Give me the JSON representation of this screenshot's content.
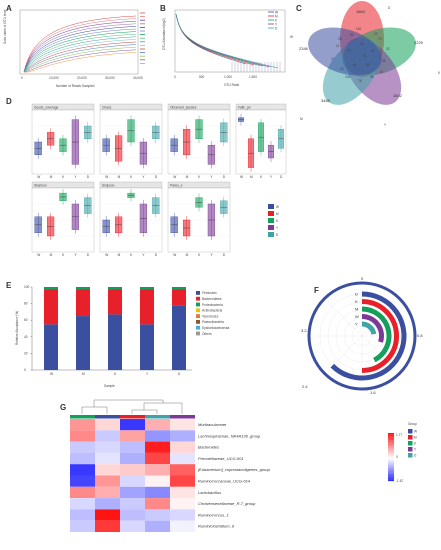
{
  "panels": {
    "A": {
      "label": "A",
      "ylabel": "Sobs index of OTU level",
      "xlabel": "Number of Reads Sampled",
      "xticks": [
        "0",
        "10,000",
        "20,000",
        "30,000",
        "40,000"
      ]
    },
    "B": {
      "label": "B",
      "ylabel": "OTU Abundance(log2)",
      "xlabel": "OTU Rank",
      "xticks": [
        "0",
        "500",
        "1,000",
        "1,500"
      ],
      "legend": [
        "W",
        "M",
        "K",
        "Y",
        "D"
      ]
    },
    "C": {
      "label": "C",
      "values": [
        "1664",
        "2229",
        "1642",
        "3465",
        "2346",
        "181",
        "70",
        "38",
        "96",
        "105",
        "17",
        "28",
        "34",
        "45",
        "80",
        "50",
        "74",
        "91",
        "52",
        "23",
        "32",
        "57",
        "78",
        "30",
        "11"
      ],
      "set_labels": [
        "D",
        "K",
        "Y",
        "M",
        "W"
      ]
    },
    "D": {
      "label": "D",
      "facets": [
        "Goods_coverage",
        "Chao1",
        "Observed_species",
        "Faith_pd",
        "Shannon",
        "Simpson",
        "Pielou_e"
      ],
      "groups": [
        "W",
        "M",
        "K",
        "Y",
        "D"
      ]
    },
    "E": {
      "label": "E",
      "ylabel": "Relative Abundance (%)",
      "xlabel": "Sample",
      "yticks": [
        "0",
        "20",
        "40",
        "60",
        "80",
        "100"
      ],
      "legend": [
        "Firmicutes",
        "Bacteroidetes",
        "Proteobacteria",
        "Actinobacteria",
        "Tenericutes",
        "Patescibacteria",
        "Epsilonbacteraeota",
        "Others"
      ]
    },
    "F": {
      "label": "F",
      "ticks": [
        "0",
        "0.8",
        "1.6",
        "2.4",
        "3.2"
      ],
      "rings": [
        "D",
        "K",
        "M",
        "W",
        "Y"
      ]
    },
    "G": {
      "label": "G",
      "legend_title": "Group",
      "scale": [
        "1.77",
        "0",
        "-1.67"
      ],
      "groups": [
        "W",
        "M",
        "K",
        "Y",
        "D"
      ],
      "rows": [
        "Muribaculaceae",
        "Lachnospiraceae_NK4A136_group",
        "Bacteroides",
        "Prevotellaceae_UCG-001",
        "[Eubacterium]_coprostanoligenes_group",
        "Ruminococcaceae_UCG-014",
        "Lactobacillus",
        "Christensenellaceae_R-7_group",
        "Ruminococcus_1",
        "Ruminiclostridium_9"
      ]
    }
  },
  "colors": {
    "W": "#3b4fa0",
    "M": "#e8202a",
    "K": "#13a05a",
    "Y": "#7c3a96",
    "D": "#3fa3a8",
    "firm": "#3b4fa0",
    "bact": "#e8202a",
    "prot": "#13a05a"
  },
  "chart_data": [
    {
      "type": "bar",
      "panel": "E",
      "categories": [
        "W",
        "M",
        "K",
        "Y",
        "D"
      ],
      "series": [
        {
          "name": "Firmicutes",
          "values": [
            55,
            65,
            67,
            55,
            78
          ]
        },
        {
          "name": "Bacteroidetes",
          "values": [
            42,
            32,
            30,
            42,
            19
          ]
        },
        {
          "name": "Proteobacteria",
          "values": [
            2,
            2,
            2,
            2,
            2
          ]
        },
        {
          "name": "Others",
          "values": [
            1,
            1,
            1,
            1,
            1
          ]
        }
      ],
      "ylabel": "Relative Abundance (%)",
      "xlabel": "Sample",
      "ylim": [
        0,
        100
      ]
    },
    {
      "type": "heatmap",
      "panel": "G",
      "x": [
        "W",
        "M",
        "K",
        "Y",
        "D"
      ],
      "y": [
        "Muribaculaceae",
        "Lachnospiraceae_NK4A136_group",
        "Bacteroides",
        "Prevotellaceae_UCG-001",
        "[Eubacterium]_coprostanoligenes_group",
        "Ruminococcaceae_UCG-014",
        "Lactobacillus",
        "Christensenellaceae_R-7_group",
        "Ruminococcus_1",
        "Ruminiclostridium_9"
      ],
      "values": [
        [
          0.8,
          0.3,
          -1.5,
          0.6,
          0.2
        ],
        [
          0.9,
          -0.4,
          0.7,
          -0.8,
          -0.6
        ],
        [
          -0.4,
          -0.3,
          -0.5,
          1.7,
          0.3
        ],
        [
          -0.5,
          -0.2,
          -0.6,
          1.4,
          -0.2
        ],
        [
          -1.5,
          0.3,
          0.4,
          0.6,
          1.2
        ],
        [
          -1.4,
          0.8,
          -0.3,
          0.1,
          1.4
        ],
        [
          0.9,
          0.6,
          -0.7,
          -0.9,
          0.2
        ],
        [
          -0.3,
          -0.6,
          -0.4,
          0.9,
          0.1
        ],
        [
          -0.5,
          1.8,
          -0.5,
          -0.4,
          -0.3
        ],
        [
          -0.4,
          1.5,
          -0.3,
          -0.6,
          -0.1
        ]
      ],
      "zlim": [
        -1.67,
        1.77
      ]
    },
    {
      "type": "bar",
      "panel": "F",
      "mode": "circular",
      "categories": [
        "D",
        "K",
        "M",
        "W",
        "Y"
      ],
      "values": [
        2.5,
        2.0,
        1.7,
        1.2,
        0.9
      ]
    }
  ]
}
